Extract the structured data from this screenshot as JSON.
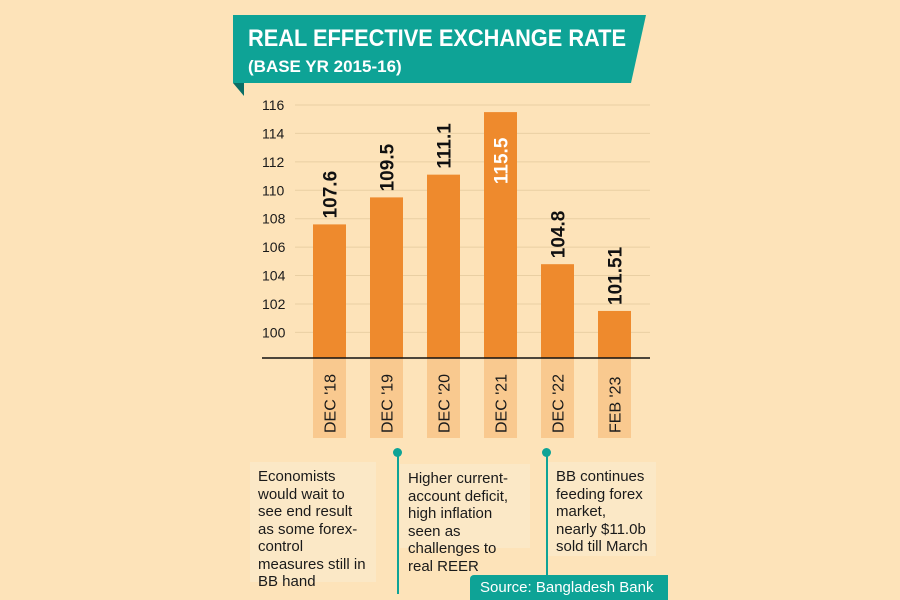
{
  "chart_data": {
    "type": "bar",
    "title": "REAL EFFECTIVE EXCHANGE RATE",
    "subtitle": "(BASE YR 2015-16)",
    "categories": [
      "DEC '18",
      "DEC '19",
      "DEC '20",
      "DEC '21",
      "DEC '22",
      "FEB '23"
    ],
    "values": [
      107.6,
      109.5,
      111.1,
      115.5,
      104.8,
      101.51
    ],
    "value_labels": [
      "107.6",
      "109.5",
      "111.1",
      "115.5",
      "104.8",
      "101.51"
    ],
    "yticks": [
      "100",
      "102",
      "104",
      "106",
      "108",
      "110",
      "112",
      "114",
      "116"
    ],
    "ylim": [
      98.2,
      116
    ],
    "grid": true,
    "highlight_index": 3,
    "colors": {
      "bar": "#ee8a2d",
      "category_box": "#f9c98f",
      "accent": "#0ea396",
      "background": "#fde3b9"
    }
  },
  "notes": [
    "Economists would wait to see end result as some forex-control measures still in BB hand",
    "Higher current-account deficit, high inflation seen as challenges to real REER",
    "BB continues feeding forex market, nearly $11.0b sold till March"
  ],
  "source": "Source: Bangladesh Bank"
}
